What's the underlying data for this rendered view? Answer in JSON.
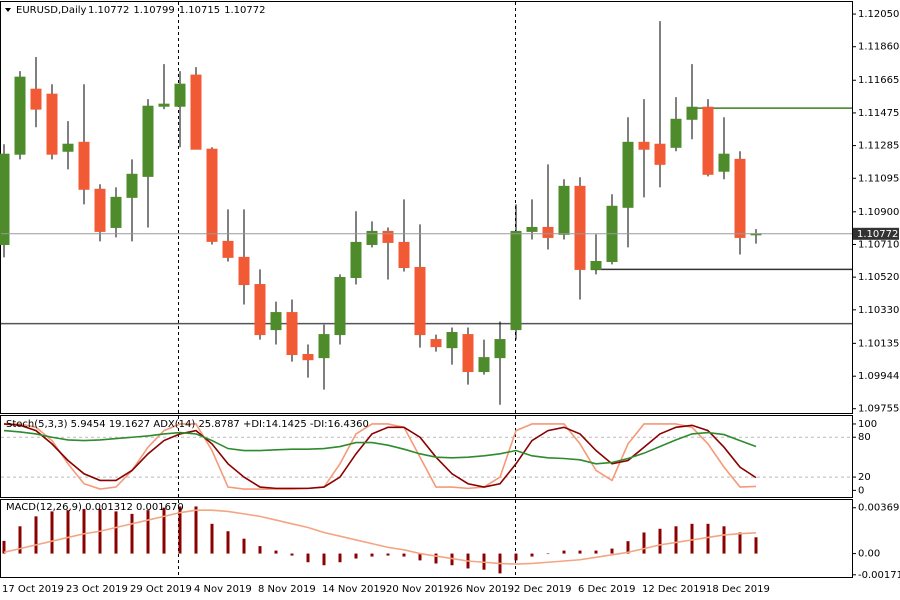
{
  "chart_data": [
    {
      "type": "candlestick",
      "title": "EURUSD,Daily",
      "categories": [
        "17 Oct 2019",
        null,
        null,
        null,
        "23 Oct 2019",
        null,
        null,
        null,
        "29 Oct 2019",
        null,
        null,
        null,
        "4 Nov 2019",
        null,
        null,
        null,
        "8 Nov 2019",
        null,
        null,
        null,
        "14 Nov 2019",
        null,
        null,
        null,
        "20 Nov 2019",
        null,
        null,
        null,
        "26 Nov 2019",
        null,
        null,
        null,
        "2 Dec 2019",
        null,
        null,
        null,
        "6 Dec 2019",
        null,
        null,
        null,
        "12 Dec 2019",
        null,
        null,
        null,
        "18 Dec 2019",
        null,
        null,
        null
      ],
      "open": [
        1.1071,
        1.11235,
        1.11613,
        1.11584,
        1.11252,
        1.11304,
        1.11031,
        1.10809,
        1.10984,
        1.11106,
        1.11514,
        1.11514,
        1.11695,
        1.11264,
        1.10728,
        1.10635,
        1.10477,
        1.10215,
        1.10314,
        1.1007,
        1.10052,
        1.10186,
        1.10518,
        1.1071,
        1.10786,
        1.10722,
        1.10576,
        1.10157,
        1.1011,
        1.10186,
        1.09971,
        1.10052,
        1.10215,
        1.10786,
        1.10809,
        1.10769,
        1.11048,
        1.10565,
        1.10611,
        1.10926,
        1.11304,
        1.11293,
        1.11275,
        1.11438,
        1.11508,
        1.11136,
        1.11205,
        1.10772
      ],
      "high": [
        1.11293,
        1.11718,
        1.118,
        1.11642,
        1.11427,
        1.11642,
        1.1106,
        1.11042,
        1.11205,
        1.11555,
        1.11759,
        1.11718,
        1.11741,
        1.11275,
        1.10914,
        1.10914,
        1.10565,
        1.10378,
        1.1039,
        1.10128,
        1.10244,
        1.10536,
        1.10903,
        1.10844,
        1.10809,
        1.10972,
        1.10827,
        1.10186,
        1.10227,
        1.10227,
        1.10157,
        1.10262,
        1.10943,
        1.10972,
        1.11176,
        1.11089,
        1.11101,
        1.10769,
        1.11002,
        1.1145,
        1.11555,
        1.12009,
        1.11567,
        1.11759,
        1.11555,
        1.1145,
        1.11252,
        1.10799
      ],
      "low": [
        1.10635,
        1.11205,
        1.11392,
        1.11205,
        1.11147,
        1.10943,
        1.10728,
        1.10751,
        1.10728,
        1.10809,
        1.11497,
        1.11275,
        1.11264,
        1.1071,
        1.10611,
        1.10361,
        1.10157,
        1.10128,
        1.10029,
        1.09936,
        1.09866,
        1.10128,
        1.10477,
        1.10693,
        1.10506,
        1.10553,
        1.1011,
        1.10087,
        1.10011,
        1.09895,
        1.09953,
        1.09778,
        1.10157,
        1.10739,
        1.10681,
        1.10739,
        1.1039,
        1.10536,
        1.10594,
        1.10693,
        1.10984,
        1.11042,
        1.11252,
        1.11322,
        1.11106,
        1.11089,
        1.10652,
        1.10715
      ],
      "close": [
        1.11235,
        1.11683,
        1.11497,
        1.11235,
        1.11293,
        1.11031,
        1.10786,
        1.10984,
        1.11118,
        1.11514,
        1.11526,
        1.11642,
        1.11264,
        1.10728,
        1.10635,
        1.10477,
        1.10186,
        1.10314,
        1.1007,
        1.1004,
        1.10186,
        1.10518,
        1.10722,
        1.10786,
        1.10722,
        1.10576,
        1.10186,
        1.10116,
        1.10198,
        1.09971,
        1.10052,
        1.10157,
        1.10786,
        1.10809,
        1.10751,
        1.11048,
        1.10565,
        1.10611,
        1.10932,
        1.11304,
        1.11264,
        1.11176,
        1.11438,
        1.11508,
        1.11118,
        1.11235,
        1.10751,
        1.10772
      ],
      "up_color": "#4e8b2b",
      "down_color": "#f15a35",
      "hlines": [
        {
          "value": 1.11503,
          "color": "#3b7d1f",
          "start": 43
        },
        {
          "value": 1.10565,
          "color": "#333333",
          "start": 37
        },
        {
          "value": 1.1025,
          "color": "#555555"
        }
      ],
      "ylim": [
        1.0973,
        1.1212
      ],
      "yticks": [
        {
          "value": 1.1205,
          "label": "1.12050"
        },
        {
          "value": 1.1186,
          "label": "1.11860"
        },
        1.11665,
        1.11475,
        1.11285,
        1.11095,
        {
          "value": 1.109,
          "label": "1.10900"
        },
        {
          "value": 1.1071,
          "label": "1.10710"
        },
        {
          "value": 1.1052,
          "label": "1.10520"
        },
        {
          "value": 1.1033,
          "label": "1.10330"
        },
        1.10135,
        1.09944,
        1.09755
      ]
    },
    {
      "type": "line",
      "title": "Stoch(5,3,3) 5.9454 19.1627  ADX(14) 25.8787 +DI:14.1425 -DI:16.4360",
      "series": [
        {
          "color": "#f59a78",
          "values": [
            100,
            100,
            95,
            75,
            40,
            10,
            2,
            5,
            30,
            65,
            90,
            100,
            100,
            60,
            5,
            2,
            2,
            2,
            2,
            3,
            5,
            40,
            85,
            100,
            100,
            95,
            50,
            5,
            5,
            3,
            5,
            20,
            90,
            100,
            100,
            100,
            70,
            30,
            15,
            70,
            100,
            100,
            100,
            95,
            70,
            35,
            5,
            5.9454
          ]
        },
        {
          "color": "#8b0000",
          "values": [
            100,
            98,
            90,
            70,
            45,
            25,
            15,
            15,
            30,
            55,
            75,
            85,
            90,
            70,
            40,
            20,
            5,
            3,
            3,
            3,
            5,
            20,
            55,
            85,
            95,
            95,
            80,
            50,
            25,
            10,
            5,
            10,
            40,
            75,
            90,
            95,
            85,
            60,
            40,
            45,
            65,
            85,
            95,
            98,
            90,
            65,
            35,
            19.1627
          ]
        },
        {
          "color": "#2e8b2e",
          "values": [
            90,
            88,
            85,
            80,
            76,
            75,
            76,
            78,
            80,
            82,
            85,
            87,
            85,
            75,
            63,
            60,
            60,
            61,
            62,
            62,
            63,
            66,
            72,
            72,
            68,
            62,
            55,
            50,
            49,
            50,
            52,
            55,
            60,
            52,
            49,
            48,
            46,
            40,
            42,
            48,
            56,
            66,
            76,
            85,
            87,
            84,
            75,
            66
          ]
        }
      ],
      "levels": [
        80,
        20
      ],
      "ylim": [
        -10,
        112
      ],
      "yticks": [
        100,
        80,
        20,
        0
      ]
    },
    {
      "type": "bar",
      "title": "MACD(12,26,9) 0.001312 0.001670",
      "series": [
        {
          "type": "bar",
          "color": "#8b0000",
          "values": [
            0.00102,
            0.0022,
            0.003,
            0.0034,
            0.0035,
            0.0036,
            0.0036,
            0.0034,
            0.0032,
            0.0035,
            0.0037,
            0.0038,
            0.0038,
            0.0024,
            0.0018,
            0.0012,
            0.0006,
            0.00024,
            -0.00016,
            -0.0007,
            -0.00094,
            -0.0007,
            -0.0004,
            -0.00024,
            -0.00016,
            -0.00024,
            -0.00055,
            -0.0008,
            -0.00094,
            -0.0012,
            -0.0013,
            -0.0016,
            -0.00055,
            -0.00024,
            0,
            0.00024,
            0.00024,
            0.00024,
            0.0004,
            0.001,
            0.0017,
            0.002,
            0.0022,
            0.0024,
            0.0024,
            0.0022,
            0.0017,
            0.001312
          ]
        },
        {
          "type": "line",
          "color": "#f4a582",
          "values": [
            0.0001,
            0.0004,
            0.0007,
            0.001,
            0.0013,
            0.0016,
            0.0018,
            0.0021,
            0.0024,
            0.0027,
            0.003,
            0.0033,
            0.0035,
            0.0035,
            0.0034,
            0.0032,
            0.003,
            0.0027,
            0.0024,
            0.0021,
            0.0017,
            0.0014,
            0.0011,
            0.0008,
            0.0005,
            0.0003,
            0,
            -0.0002,
            -0.0004,
            -0.0006,
            -0.0007,
            -0.0008,
            -0.00085,
            -0.0008,
            -0.0007,
            -0.0006,
            -0.0005,
            -0.0003,
            -0.0001,
            0.0001,
            0.0004,
            0.0007,
            0.0009,
            0.0011,
            0.0013,
            0.0015,
            0.0016,
            0.00167
          ]
        }
      ],
      "ylim": [
        -0.00189,
        0.00432
      ],
      "yticks": [
        0.003695,
        {
          "value": 0,
          "label": "0.00"
        },
        -0.001712
      ]
    }
  ]
}
